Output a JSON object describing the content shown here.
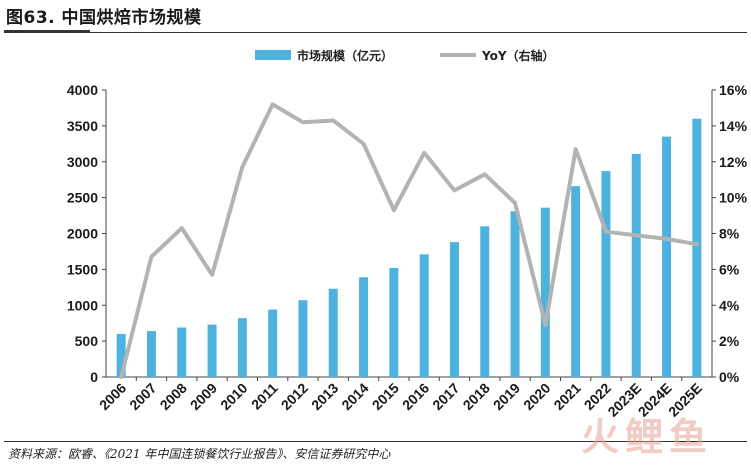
{
  "figure": {
    "title": "图63. 中国烘焙市场规模",
    "source": "资料来源：欧睿、《2021 年中国连锁餐饮行业报告》、安信证券研究中心",
    "watermark_text": "火鲤鱼"
  },
  "chart_data": {
    "type": "bar",
    "title": "",
    "categories": [
      "2006",
      "2007",
      "2008",
      "2009",
      "2010",
      "2011",
      "2012",
      "2013",
      "2014",
      "2015",
      "2016",
      "2017",
      "2018",
      "2019",
      "2020",
      "2021",
      "2022",
      "2023E",
      "2024E",
      "2025E"
    ],
    "series": [
      {
        "name": "市场规模（亿元）",
        "type": "bar",
        "axis": "left",
        "color": "#4db3de",
        "values": [
          600,
          640,
          690,
          730,
          820,
          940,
          1070,
          1230,
          1390,
          1520,
          1710,
          1880,
          2100,
          2310,
          2360,
          2660,
          2870,
          3110,
          3350,
          3600
        ]
      },
      {
        "name": "YoY（右轴）",
        "type": "line",
        "axis": "right",
        "color": "#b3b3b3",
        "values": [
          0.0,
          6.7,
          8.3,
          5.7,
          11.7,
          15.2,
          14.2,
          14.3,
          13.0,
          9.3,
          12.5,
          10.4,
          11.3,
          9.7,
          2.9,
          12.7,
          8.1,
          7.9,
          7.7,
          7.4
        ]
      }
    ],
    "y_left": {
      "lim": [
        0,
        4000
      ],
      "ticks": [
        "0",
        "500",
        "1000",
        "1500",
        "2000",
        "2500",
        "3000",
        "3500",
        "4000"
      ]
    },
    "y_right": {
      "lim": [
        0,
        16
      ],
      "ticks": [
        "0%",
        "2%",
        "4%",
        "6%",
        "8%",
        "10%",
        "12%",
        "14%",
        "16%"
      ]
    },
    "legend": {
      "placement": "top-center"
    },
    "grid": false
  }
}
